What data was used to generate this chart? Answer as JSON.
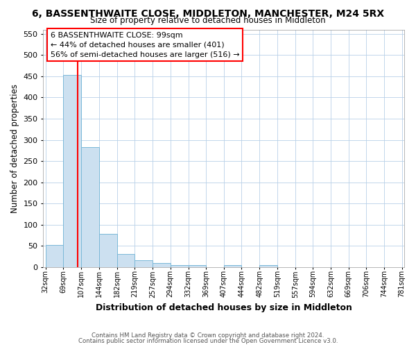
{
  "title": "6, BASSENTHWAITE CLOSE, MIDDLETON, MANCHESTER, M24 5RX",
  "subtitle": "Size of property relative to detached houses in Middleton",
  "xlabel": "Distribution of detached houses by size in Middleton",
  "ylabel": "Number of detached properties",
  "bar_edges": [
    32,
    69,
    107,
    144,
    182,
    219,
    257,
    294,
    332,
    369,
    407,
    444,
    482,
    519,
    557,
    594,
    632,
    669,
    706,
    744,
    781
  ],
  "bar_heights": [
    53,
    453,
    283,
    78,
    31,
    16,
    9,
    5,
    5,
    0,
    5,
    0,
    5,
    0,
    0,
    0,
    0,
    0,
    0,
    0
  ],
  "bar_color": "#cce0f0",
  "bar_edge_color": "#7ab8d8",
  "property_line_x": 99,
  "property_line_color": "red",
  "ylim": [
    0,
    560
  ],
  "yticks": [
    0,
    50,
    100,
    150,
    200,
    250,
    300,
    350,
    400,
    450,
    500,
    550
  ],
  "xtick_labels": [
    "32sqm",
    "69sqm",
    "107sqm",
    "144sqm",
    "182sqm",
    "219sqm",
    "257sqm",
    "294sqm",
    "332sqm",
    "369sqm",
    "407sqm",
    "444sqm",
    "482sqm",
    "519sqm",
    "557sqm",
    "594sqm",
    "632sqm",
    "669sqm",
    "706sqm",
    "744sqm",
    "781sqm"
  ],
  "annotation_title": "6 BASSENTHWAITE CLOSE: 99sqm",
  "annotation_line1": "← 44% of detached houses are smaller (401)",
  "annotation_line2": "56% of semi-detached houses are larger (516) →",
  "footer1": "Contains HM Land Registry data © Crown copyright and database right 2024.",
  "footer2": "Contains public sector information licensed under the Open Government Licence v3.0.",
  "background_color": "#ffffff",
  "grid_color": "#b8d0e8"
}
